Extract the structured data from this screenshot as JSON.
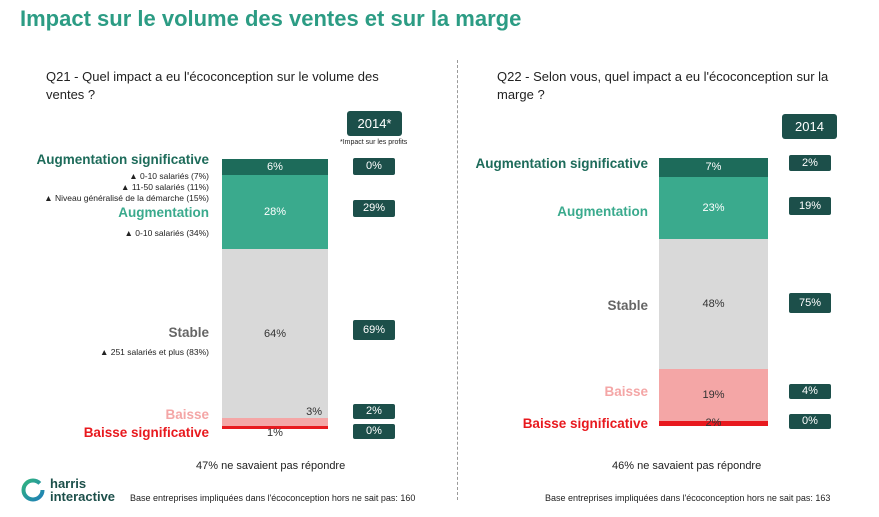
{
  "title": "Impact sur le volume des ventes et sur la marge",
  "left": {
    "question": "Q21 - Quel impact a eu l'écoconception sur le volume des ventes ?",
    "year_badge": "2014*",
    "year_note": "*Impact sur les profits",
    "labels": {
      "aug_sig": "Augmentation significative",
      "aug": "Augmentation",
      "stable": "Stable",
      "baisse": "Baisse",
      "baisse_sig": "Baisse significative"
    },
    "sub_aug_sig": [
      "▲  0-10 salariés (7%)",
      "▲  11-50 salariés (11%)",
      "▲  Niveau généralisé de la démarche (15%)"
    ],
    "sub_aug": [
      "▲  0-10 salariés (34%)"
    ],
    "sub_stable": [
      "▲  251 salariés et plus (83%)"
    ],
    "segment_labels": [
      "6%",
      "28%",
      "64%",
      "3%",
      "1%"
    ],
    "badges_2014": [
      "0%",
      "29%",
      "69%",
      "2%",
      "0%"
    ],
    "note": "47% ne savaient pas répondre",
    "footer": "Base entreprises impliquées dans l'écoconception  hors ne sait pas: 160"
  },
  "right": {
    "question": "Q22 - Selon vous, quel impact a eu l'écoconception sur la marge ?",
    "year_badge": "2014",
    "labels": {
      "aug_sig": "Augmentation significative",
      "aug": "Augmentation",
      "stable": "Stable",
      "baisse": "Baisse",
      "baisse_sig": "Baisse significative"
    },
    "segment_labels": [
      "7%",
      "23%",
      "48%",
      "19%",
      "2%"
    ],
    "badges_2014": [
      "2%",
      "19%",
      "75%",
      "4%",
      "0%"
    ],
    "note": "46% ne savaient pas répondre",
    "footer": "Base entreprises impliquées dans l'écoconception  hors ne sait pas: 163"
  },
  "logo": {
    "line1": "harris",
    "line2": "interactive"
  },
  "colors": {
    "aug_sig": "#1d6b5a",
    "aug": "#3aaa8d",
    "stable": "#d9d9d9",
    "baisse": "#f4a6a6",
    "baisse_sig": "#e8191e",
    "badge": "#1c4f4a",
    "title": "#2c9c84"
  },
  "chart_data": [
    {
      "type": "bar",
      "stacked": true,
      "title": "Q21 - Quel impact a eu l'écoconception sur le volume des ventes ?",
      "categories": [
        "Augmentation significative",
        "Augmentation",
        "Stable",
        "Baisse",
        "Baisse significative"
      ],
      "series": [
        {
          "values": [
            6,
            28,
            64,
            3,
            1
          ]
        },
        {
          "name": "2014*",
          "values": [
            0,
            29,
            69,
            2,
            0
          ]
        }
      ],
      "unit": "%"
    },
    {
      "type": "bar",
      "stacked": true,
      "title": "Q22 - Selon vous, quel impact a eu l'écoconception sur la marge ?",
      "categories": [
        "Augmentation significative",
        "Augmentation",
        "Stable",
        "Baisse",
        "Baisse significative"
      ],
      "series": [
        {
          "values": [
            7,
            23,
            48,
            19,
            2
          ]
        },
        {
          "name": "2014",
          "values": [
            2,
            19,
            75,
            4,
            0
          ]
        }
      ],
      "unit": "%"
    }
  ]
}
